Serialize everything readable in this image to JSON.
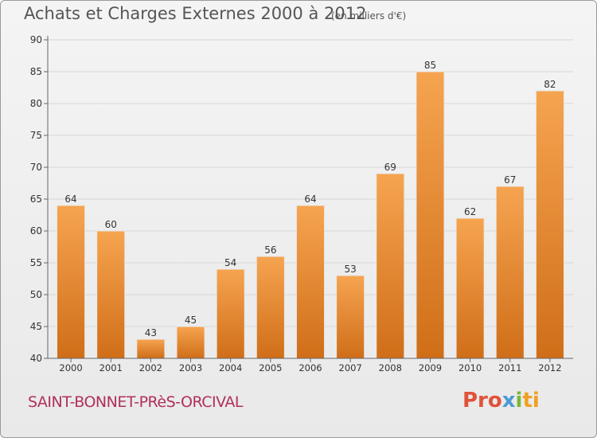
{
  "title": "Achats et Charges Externes 2000 à 2012",
  "subtitle": "(en milliers d'€)",
  "commune": "SAINT-BONNET-PRèS-ORCIVAL",
  "logo": {
    "p1": "Pro",
    "p2": "x",
    "p3": "i",
    "p4": "ti"
  },
  "colors": {
    "bar_top": "#f6a450",
    "bar_bottom": "#d06e18",
    "commune": "#b0305a"
  },
  "chart_data": {
    "type": "bar",
    "title": "Achats et Charges Externes 2000 à 2012",
    "subtitle": "(en milliers d'€)",
    "categories": [
      "2000",
      "2001",
      "2002",
      "2003",
      "2004",
      "2005",
      "2006",
      "2007",
      "2008",
      "2009",
      "2010",
      "2011",
      "2012"
    ],
    "values": [
      64,
      60,
      43,
      45,
      54,
      56,
      64,
      53,
      69,
      85,
      62,
      67,
      82
    ],
    "ylim": [
      40,
      90
    ],
    "yticks": [
      40,
      45,
      50,
      55,
      60,
      65,
      70,
      75,
      80,
      85,
      90
    ],
    "grid": true
  }
}
